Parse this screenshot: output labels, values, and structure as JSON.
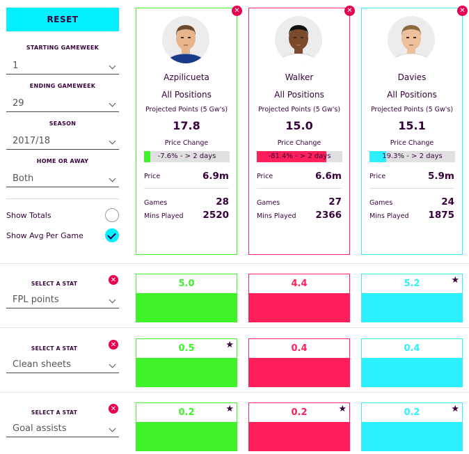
{
  "filters": {
    "reset_label": "RESET",
    "starting_gameweek": {
      "label": "STARTING GAMEWEEK",
      "value": "1"
    },
    "ending_gameweek": {
      "label": "ENDING GAMEWEEK",
      "value": "29"
    },
    "season": {
      "label": "SEASON",
      "value": "2017/18"
    },
    "home_or_away": {
      "label": "HOME OR AWAY",
      "value": "Both"
    },
    "show_totals": {
      "label": "Show Totals",
      "checked": false
    },
    "show_avg": {
      "label": "Show Avg Per Game",
      "checked": true
    }
  },
  "colors": {
    "brand_purple": "#37003c",
    "accent_cyan": "#05f0ff",
    "green": "#3ff22a",
    "pink": "#ff1f5a",
    "cyan": "#2cf0fd",
    "close_red": "#e90052"
  },
  "players": [
    {
      "name": "Azpilicueta",
      "position": "All Positions",
      "proj_label": "Projected Points (5 Gw's)",
      "proj_value": "17.8",
      "price_change_label": "Price Change",
      "price_change_text": "-7.6% - > 2 days",
      "price_change_fraction": 0.076,
      "price_label": "Price",
      "price": "6.9m",
      "games_label": "Games",
      "games": "28",
      "mins_label": "Mins Played",
      "mins": "2520",
      "color": "#3ff22a"
    },
    {
      "name": "Walker",
      "position": "All Positions",
      "proj_label": "Projected Points (5 Gw's)",
      "proj_value": "15.0",
      "price_change_label": "Price Change",
      "price_change_text": "-81.4% - > 2 days",
      "price_change_fraction": 0.814,
      "price_label": "Price",
      "price": "6.6m",
      "games_label": "Games",
      "games": "27",
      "mins_label": "Mins Played",
      "mins": "2366",
      "color": "#ff1f5a"
    },
    {
      "name": "Davies",
      "position": "All Positions",
      "proj_label": "Projected Points (5 Gw's)",
      "proj_value": "15.1",
      "price_change_label": "Price Change",
      "price_change_text": "19.3% - > 2 days",
      "price_change_fraction": 0.193,
      "price_label": "Price",
      "price": "5.9m",
      "games_label": "Games",
      "games": "24",
      "mins_label": "Mins Played",
      "mins": "1875",
      "color": "#2cf0fd"
    }
  ],
  "stats": [
    {
      "label": "SELECT A STAT",
      "value": "FPL points",
      "cells": [
        {
          "value": "5.0",
          "starred": false
        },
        {
          "value": "4.4",
          "starred": false
        },
        {
          "value": "5.2",
          "starred": true
        }
      ]
    },
    {
      "label": "SELECT A STAT",
      "value": "Clean sheets",
      "cells": [
        {
          "value": "0.5",
          "starred": true
        },
        {
          "value": "0.4",
          "starred": false
        },
        {
          "value": "0.4",
          "starred": false
        }
      ]
    },
    {
      "label": "SELECT A STAT",
      "value": "Goal assists",
      "cells": [
        {
          "value": "0.2",
          "starred": true
        },
        {
          "value": "0.2",
          "starred": true
        },
        {
          "value": "0.2",
          "starred": true
        }
      ]
    }
  ]
}
